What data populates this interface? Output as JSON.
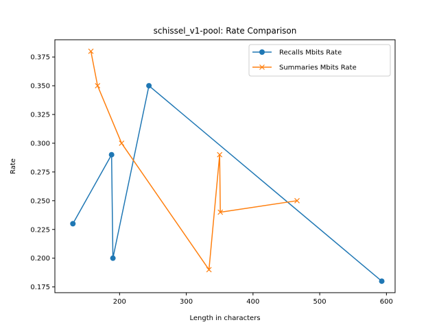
{
  "chart_data": {
    "type": "line",
    "title": "schissel_v1-pool: Rate Comparison",
    "xlabel": "Length in characters",
    "ylabel": "Rate",
    "xlim": [
      103,
      613
    ],
    "ylim": [
      0.17,
      0.39
    ],
    "xticks": [
      200,
      300,
      400,
      500,
      600
    ],
    "yticks": [
      0.175,
      0.2,
      0.225,
      0.25,
      0.275,
      0.3,
      0.325,
      0.35,
      0.375
    ],
    "xtick_labels": [
      "200",
      "300",
      "400",
      "500",
      "600"
    ],
    "ytick_labels": [
      "0.175",
      "0.200",
      "0.225",
      "0.250",
      "0.275",
      "0.300",
      "0.325",
      "0.350",
      "0.375"
    ],
    "grid": false,
    "legend_position": "top-right",
    "series": [
      {
        "name": "Recalls Mbits Rate",
        "color": "#1f77b4",
        "marker": "circle",
        "x": [
          130,
          188,
          190,
          244,
          593
        ],
        "y": [
          0.23,
          0.29,
          0.2,
          0.35,
          0.18
        ]
      },
      {
        "name": "Summaries Mbits Rate",
        "color": "#ff7f0e",
        "marker": "x",
        "x": [
          157,
          167,
          203,
          334,
          350,
          351,
          466
        ],
        "y": [
          0.38,
          0.35,
          0.3,
          0.19,
          0.29,
          0.24,
          0.25
        ]
      }
    ]
  }
}
